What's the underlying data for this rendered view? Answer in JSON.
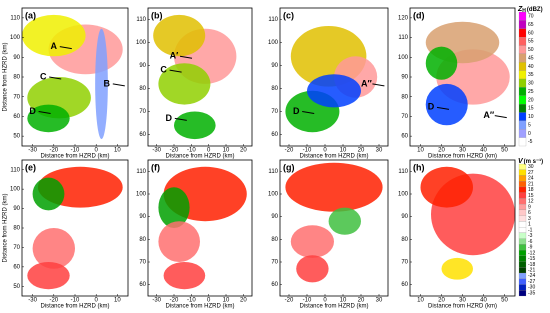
{
  "axis_label": "Distance from HZRD (km)",
  "panels": [
    {
      "label": "(a)",
      "xticks": [
        "-30",
        "-20",
        "-10",
        "0",
        "10"
      ],
      "yticks": [
        "50",
        "60",
        "70",
        "80",
        "90",
        "100",
        "110"
      ],
      "annotations": [
        "A",
        "B",
        "C",
        "D"
      ]
    },
    {
      "label": "(b)",
      "xticks": [
        "-30",
        "-20",
        "-10",
        "0",
        "10",
        "20"
      ],
      "yticks": [
        "60",
        "70",
        "80",
        "90",
        "100",
        "110"
      ],
      "annotations": [
        "A′",
        "C",
        "D"
      ]
    },
    {
      "label": "(c)",
      "xticks": [
        "-20",
        "-10",
        "0",
        "10",
        "20",
        "30"
      ],
      "yticks": [
        "60",
        "70",
        "80",
        "90",
        "100",
        "110"
      ],
      "annotations": [
        "A″",
        "D"
      ]
    },
    {
      "label": "(d)",
      "xticks": [
        "10",
        "20",
        "30",
        "40",
        "50"
      ],
      "yticks": [
        "60",
        "70",
        "80",
        "90",
        "100",
        "110",
        "120"
      ],
      "annotations": [
        "D",
        "A″"
      ]
    },
    {
      "label": "(e)",
      "xticks": [
        "-30",
        "-20",
        "-10",
        "0",
        "10"
      ],
      "yticks": [
        "50",
        "60",
        "70",
        "80",
        "90",
        "100",
        "110"
      ],
      "annotations": []
    },
    {
      "label": "(f)",
      "xticks": [
        "-30",
        "-20",
        "-10",
        "0",
        "10",
        "20"
      ],
      "yticks": [
        "60",
        "70",
        "80",
        "90",
        "100",
        "110"
      ],
      "annotations": []
    },
    {
      "label": "(g)",
      "xticks": [
        "-20",
        "-10",
        "0",
        "10",
        "20",
        "30"
      ],
      "yticks": [
        "60",
        "70",
        "80",
        "90",
        "100",
        "110"
      ],
      "annotations": []
    },
    {
      "label": "(h)",
      "xticks": [
        "10",
        "20",
        "30",
        "40",
        "50"
      ],
      "yticks": [
        "60",
        "70",
        "80",
        "90",
        "100",
        "110"
      ],
      "annotations": []
    }
  ],
  "colorbar_reflectivity": {
    "symbol": "Z",
    "subscript": "H",
    "unit": "(dBZ)",
    "ticks": [
      "70",
      "65",
      "60",
      "55",
      "50",
      "45",
      "40",
      "35",
      "30",
      "25",
      "20",
      "15",
      "10",
      "5",
      "0",
      "-5"
    ]
  },
  "colorbar_velocity": {
    "symbol": "V",
    "unit": "(m s⁻¹)",
    "ticks": [
      "30",
      "27",
      "24",
      "21",
      "18",
      "15",
      "12",
      "9",
      "6",
      "3",
      "1",
      "-1",
      "-3",
      "-6",
      "-9",
      "-12",
      "-15",
      "-18",
      "-21",
      "-24",
      "-27",
      "-30",
      "-35"
    ]
  }
}
